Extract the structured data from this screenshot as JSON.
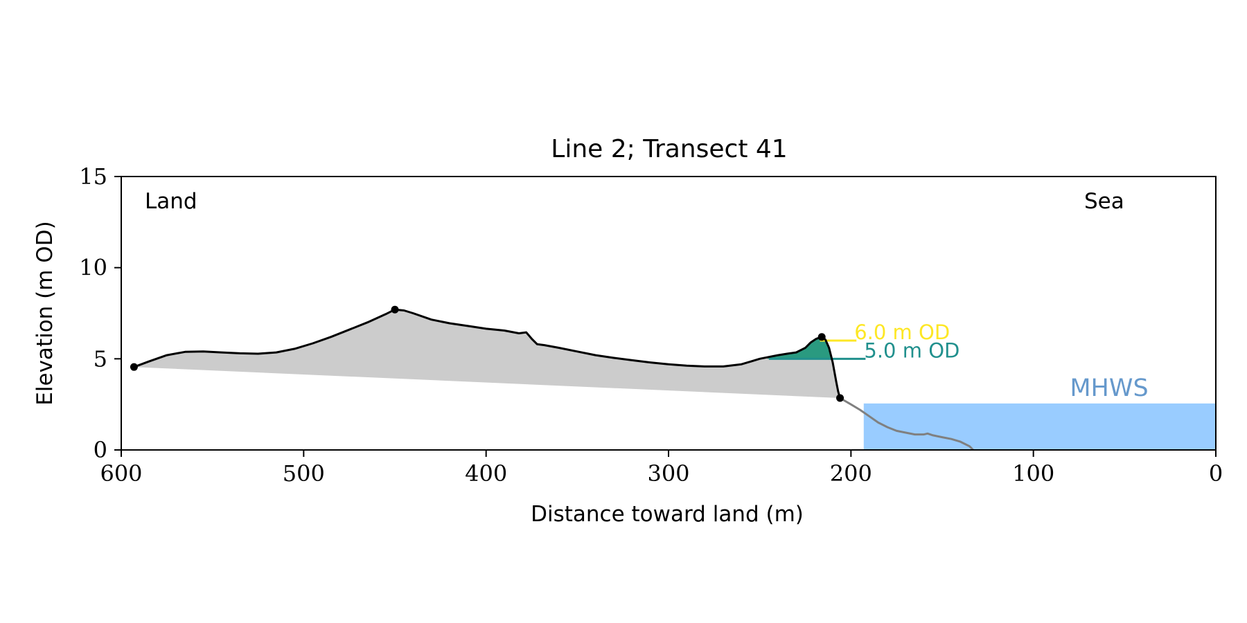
{
  "chart_data": {
    "type": "area",
    "title": "Line 2; Transect 41",
    "xlabel": "Distance toward land (m)",
    "ylabel": "Elevation (m OD)",
    "xlim": [
      600,
      0
    ],
    "ylim": [
      0,
      15
    ],
    "x_ticks": [
      600,
      500,
      400,
      300,
      200,
      100,
      0
    ],
    "y_ticks": [
      0,
      5,
      10,
      15
    ],
    "grid": false,
    "colors": {
      "terrain_fill": "#cccccc",
      "profile_line": "#000000",
      "seaward_line": "#808080",
      "sea_fill": "#99ccff",
      "volume_fill": "#2a9a80",
      "level_6": "#fde725",
      "level_5": "#21908d",
      "mhws_label": "#6699cc"
    },
    "annotations": {
      "land_label": "Land",
      "sea_label": "Sea",
      "mhws_label": "MHWS"
    },
    "mhws": {
      "elevation": 2.55,
      "x_start": 193,
      "x_end": 0
    },
    "levels": [
      {
        "label": "6.0 m OD",
        "elevation": 6.0,
        "x_start": 217,
        "x_end": 197
      },
      {
        "label": "5.0 m OD",
        "elevation": 5.0,
        "x_start": 245,
        "x_end": 192
      }
    ],
    "volume_region": {
      "elevation": 5.0,
      "x_start": 246,
      "x_end": 206
    },
    "key_points": [
      {
        "x": 593,
        "y": 4.55
      },
      {
        "x": 450,
        "y": 7.7
      },
      {
        "x": 216,
        "y": 6.2
      },
      {
        "x": 206,
        "y": 2.85
      }
    ],
    "baseline": {
      "x_start": 593,
      "y_start": 4.55,
      "x_end": 206,
      "y_end": 2.85
    },
    "profile": {
      "x": [
        593,
        585,
        575,
        565,
        555,
        545,
        535,
        525,
        515,
        505,
        495,
        485,
        475,
        465,
        455,
        450,
        445,
        440,
        430,
        420,
        410,
        400,
        390,
        382,
        378,
        375,
        372,
        368,
        360,
        350,
        340,
        330,
        320,
        310,
        300,
        290,
        280,
        270,
        260,
        255,
        250,
        245,
        240,
        235,
        230,
        225,
        222,
        219,
        216,
        214,
        212,
        210,
        208,
        207,
        206
      ],
      "y": [
        4.55,
        4.85,
        5.2,
        5.38,
        5.4,
        5.35,
        5.3,
        5.28,
        5.35,
        5.55,
        5.85,
        6.2,
        6.6,
        7.0,
        7.45,
        7.7,
        7.65,
        7.5,
        7.15,
        6.95,
        6.8,
        6.65,
        6.55,
        6.4,
        6.45,
        6.1,
        5.8,
        5.75,
        5.6,
        5.4,
        5.2,
        5.05,
        4.92,
        4.8,
        4.7,
        4.62,
        4.58,
        4.58,
        4.7,
        4.85,
        5.0,
        5.1,
        5.2,
        5.28,
        5.35,
        5.6,
        5.9,
        6.1,
        6.2,
        6.05,
        5.6,
        4.8,
        3.7,
        3.2,
        2.85
      ]
    },
    "seaward_profile": {
      "x": [
        206,
        200,
        195,
        190,
        185,
        180,
        175,
        170,
        165,
        160,
        158,
        155,
        150,
        145,
        140,
        135,
        133
      ],
      "y": [
        2.85,
        2.5,
        2.2,
        1.85,
        1.5,
        1.25,
        1.05,
        0.95,
        0.85,
        0.85,
        0.9,
        0.8,
        0.7,
        0.6,
        0.45,
        0.2,
        0.0
      ]
    }
  }
}
